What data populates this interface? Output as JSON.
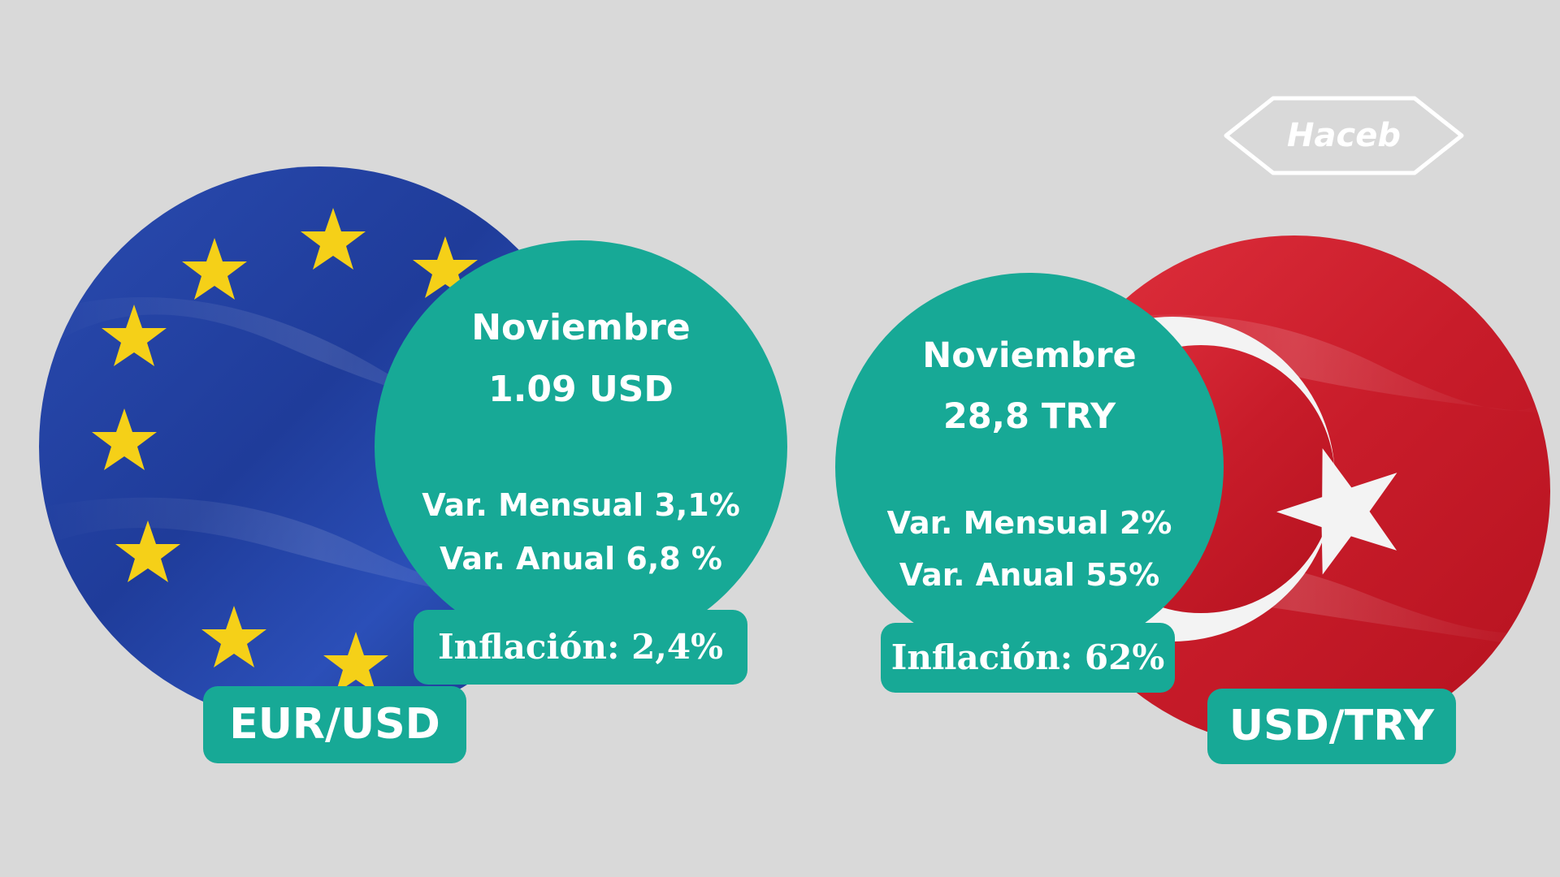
{
  "brand": {
    "logo_text": "Haceb"
  },
  "colors": {
    "background": "#d9d9d9",
    "teal": "#17a996",
    "text": "#ffffff",
    "eu_blue": "#1f3f9e",
    "eu_star": "#f5d018",
    "tr_red": "#d3202f"
  },
  "eur_usd": {
    "pair_label": "EUR/USD",
    "month": "Noviembre",
    "price": "1.09 USD",
    "monthly_change": "Var. Mensual 3,1%",
    "annual_change": "Var. Anual 6,8 %",
    "inflation": "Inflación: 2,4%",
    "flag_icon": "eu-flag-icon"
  },
  "usd_try": {
    "pair_label": "USD/TRY",
    "month": "Noviembre",
    "price": "28,8 TRY",
    "monthly_change": "Var. Mensual 2%",
    "annual_change": "Var. Anual 55%",
    "inflation": "Inflación: 62%",
    "flag_icon": "turkey-flag-icon"
  }
}
